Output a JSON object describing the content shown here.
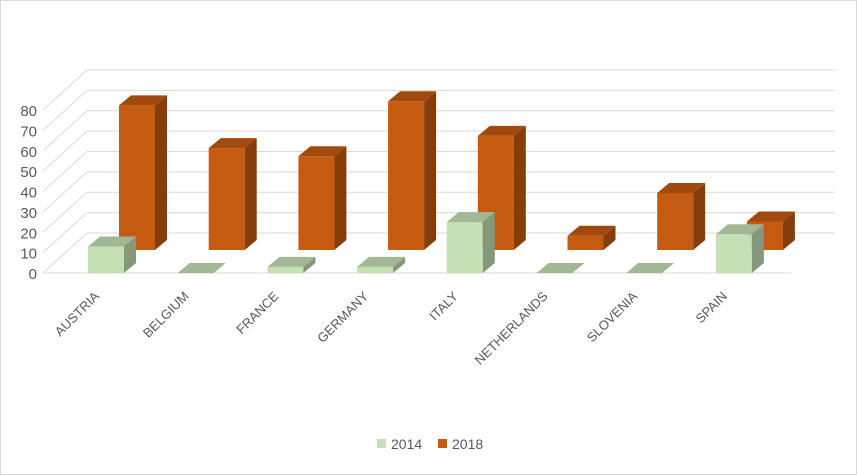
{
  "chart_data": {
    "type": "bar",
    "title": "",
    "xlabel": "",
    "ylabel": "",
    "ylim": [
      0,
      80
    ],
    "yticks": [
      "0",
      "10",
      "20",
      "30",
      "40",
      "50",
      "60",
      "70",
      "80"
    ],
    "categories": [
      "AUSTRIA",
      "BELGIUM",
      "FRANCE",
      "GERMANY",
      "ITALY",
      "NETHERLANDS",
      "SLOVENIA",
      "SPAIN"
    ],
    "series": [
      {
        "name": "2014",
        "color": "#c5e0b4",
        "values": [
          13,
          0,
          3,
          3,
          25,
          0,
          0,
          19
        ]
      },
      {
        "name": "2018",
        "color": "#c55a11",
        "values": [
          71,
          50,
          46,
          73,
          56,
          7,
          28,
          14
        ]
      }
    ],
    "legend_position": "bottom",
    "grid": true,
    "style": "3d-clustered-column"
  }
}
